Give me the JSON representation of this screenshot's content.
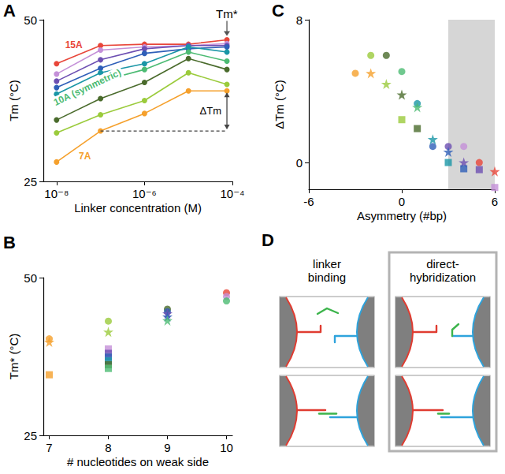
{
  "chart_data": [
    {
      "panel_label": "A",
      "type": "line",
      "log": "x",
      "marker": "circle",
      "x_label": "Linker concentration (M)",
      "y_label": "Tm (°C)",
      "x": [
        1e-08,
        1e-07,
        1e-06,
        1e-05,
        7.5e-05
      ],
      "xlim": [
        5e-09,
        0.0001
      ],
      "xticks": [
        {
          "value": 1e-08,
          "label": "10⁻⁸"
        },
        {
          "value": 1e-06,
          "label": "10⁻⁶"
        },
        {
          "value": 0.0001,
          "label": "10⁻⁴"
        }
      ],
      "ylim": [
        25,
        50
      ],
      "yticks": [
        25,
        50
      ],
      "series": [
        {
          "color": "#e8463a",
          "values": [
            43.2,
            46.0,
            46.2,
            46.2,
            46.9
          ],
          "label": "15A"
        },
        {
          "color": "#c490d8",
          "values": [
            41.6,
            45.3,
            45.8,
            46.0,
            46.3
          ]
        },
        {
          "color": "#6d4fb2",
          "values": [
            40.5,
            43.8,
            45.5,
            46.0,
            46.0
          ]
        },
        {
          "color": "#2f5fb8",
          "values": [
            39.5,
            42.5,
            44.8,
            45.5,
            45.8
          ]
        },
        {
          "color": "#1a96a6",
          "values": [
            38.5,
            41.8,
            43.2,
            45.8,
            45.0
          ]
        },
        {
          "color": "#4cbb73",
          "values": [
            37.3,
            40.5,
            42.3,
            45.0,
            43.6
          ],
          "label": "10A (symmetric)"
        },
        {
          "color": "#4a6b2c",
          "values": [
            34.5,
            37.8,
            40.3,
            44.0,
            42.3
          ]
        },
        {
          "color": "#9bcb3c",
          "values": [
            32.5,
            35.3,
            37.5,
            41.8,
            40.0
          ]
        },
        {
          "color": "#f5a02c",
          "values": [
            28.0,
            32.8,
            35.5,
            39.0,
            39.0
          ],
          "label": "7A"
        }
      ],
      "annotations": [
        {
          "text": "Tm*",
          "series": 0,
          "point": 4
        },
        {
          "text": "ΔTm",
          "series": 8,
          "from_point": 1,
          "to_point": 4
        }
      ]
    },
    {
      "panel_label": "B",
      "type": "scatter",
      "x_label": "# nucleotides on weak side",
      "y_label": "Tm* (°C)",
      "xlim": [
        6.9,
        10.1
      ],
      "xticks": [
        7,
        8,
        9,
        10
      ],
      "ylim": [
        25,
        50
      ],
      "yticks": [
        25,
        50
      ],
      "series": [
        {
          "marker": "circle",
          "x": [
            7,
            8,
            9,
            9,
            10,
            10,
            10
          ],
          "values": [
            40.3,
            43.1,
            45.0,
            44.6,
            47.6,
            47.0,
            46.3
          ],
          "colors": [
            "#f5a02c",
            "#9bcb3c",
            "#4a6b2c",
            "#2f5fb8",
            "#e8463a",
            "#c490d8",
            "#4cbb73"
          ]
        },
        {
          "marker": "star",
          "x": [
            7,
            8,
            9,
            9,
            9
          ],
          "values": [
            39.8,
            41.4,
            44.3,
            43.8,
            43.2
          ],
          "colors": [
            "#f5a02c",
            "#9bcb3c",
            "#6d4fb2",
            "#2f5fb8",
            "#4cbb73"
          ]
        },
        {
          "marker": "square",
          "x": [
            7,
            8,
            8,
            8,
            8,
            8,
            8
          ],
          "values": [
            34.6,
            38.7,
            38.0,
            37.4,
            36.8,
            36.2,
            35.6
          ],
          "colors": [
            "#f5a02c",
            "#c490d8",
            "#6d4fb2",
            "#2f5fb8",
            "#1a96a6",
            "#4a6b2c",
            "#4cbb73"
          ]
        }
      ]
    },
    {
      "panel_label": "C",
      "type": "scatter",
      "x_label": "Asymmetry (#bp)",
      "y_label": "ΔTm (°C)",
      "xlim": [
        -6,
        6
      ],
      "xticks": [
        -6,
        0,
        6
      ],
      "ylim": [
        -1.5,
        8
      ],
      "yticks": [
        0,
        8
      ],
      "shaded_x": [
        3,
        6
      ],
      "series": [
        {
          "marker": "circle",
          "x": [
            -3,
            -2,
            -1,
            0,
            1,
            2,
            3,
            4,
            5
          ],
          "values": [
            5.0,
            6.0,
            6.0,
            5.1,
            3.3,
            0.9,
            0.9,
            0.9,
            0.0
          ],
          "colors": [
            "#f5a02c",
            "#9bcb3c",
            "#4a6b2c",
            "#4cbb73",
            "#1a96a6",
            "#2f5fb8",
            "#6d4fb2",
            "#c490d8",
            "#e8463a"
          ]
        },
        {
          "marker": "star",
          "x": [
            -2,
            -1,
            0,
            1,
            2,
            3,
            4,
            6
          ],
          "values": [
            5.0,
            4.4,
            3.8,
            3.1,
            1.3,
            0.6,
            0.0,
            -0.5
          ],
          "colors": [
            "#f5a02c",
            "#9bcb3c",
            "#4a6b2c",
            "#4cbb73",
            "#1a96a6",
            "#2f5fb8",
            "#6d4fb2",
            "#e8463a"
          ]
        },
        {
          "marker": "square",
          "x": [
            0,
            1,
            3,
            4,
            5,
            6
          ],
          "values": [
            2.4,
            1.9,
            0.0,
            -0.35,
            -0.4,
            -1.4
          ],
          "colors": [
            "#9bcb3c",
            "#4a6b2c",
            "#1a96a6",
            "#2f5fb8",
            "#6d4fb2",
            "#c490d8"
          ]
        }
      ]
    }
  ],
  "diagram": {
    "panel_label": "D",
    "columns": [
      {
        "title": "linker binding"
      },
      {
        "title": "direct-hybridization",
        "highlighted": true
      }
    ]
  }
}
